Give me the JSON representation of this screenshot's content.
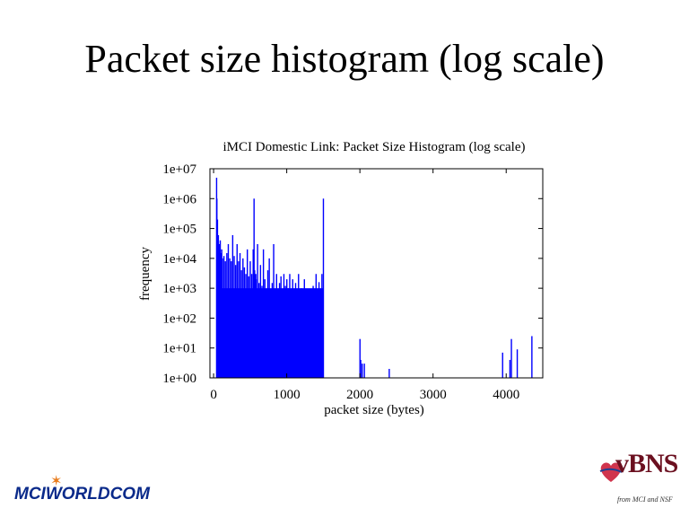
{
  "slide": {
    "title": "Packet size histogram (log scale)"
  },
  "chart_data": {
    "type": "bar",
    "title": "iMCI Domestic Link: Packet Size Histogram (log scale)",
    "xlabel": "packet size (bytes)",
    "ylabel": "frequency",
    "x_scale": "linear",
    "y_scale": "log",
    "xlim": [
      -50,
      4500
    ],
    "ylim": [
      1,
      10000000
    ],
    "x_ticks": [
      {
        "value": 0,
        "label": "0"
      },
      {
        "value": 1000,
        "label": "1000"
      },
      {
        "value": 2000,
        "label": "2000"
      },
      {
        "value": 3000,
        "label": "3000"
      },
      {
        "value": 4000,
        "label": "4000"
      }
    ],
    "y_ticks": [
      {
        "value": 1,
        "label": "1e+00"
      },
      {
        "value": 10,
        "label": "1e+01"
      },
      {
        "value": 100,
        "label": "1e+02"
      },
      {
        "value": 1000,
        "label": "1e+03"
      },
      {
        "value": 10000,
        "label": "1e+04"
      },
      {
        "value": 100000,
        "label": "1e+05"
      },
      {
        "value": 1000000,
        "label": "1e+06"
      },
      {
        "value": 10000000,
        "label": "1e+07"
      }
    ],
    "grid": false,
    "bar_color": "#0000ff",
    "bulk_range": {
      "start": 40,
      "end": 1500,
      "baseline_level": 1000
    },
    "series": [
      {
        "x": [
          40,
          44,
          52,
          60,
          64,
          76,
          90,
          100,
          110,
          120,
          140,
          160,
          180,
          200,
          220,
          240,
          260,
          280,
          300,
          320,
          340,
          360,
          380,
          400,
          420,
          440,
          460,
          480,
          500,
          520,
          540,
          552,
          560,
          576,
          580,
          600,
          620,
          640,
          660,
          680,
          700,
          720,
          740,
          760,
          780,
          800,
          820,
          840,
          860,
          880,
          900,
          920,
          940,
          960,
          980,
          1000,
          1020,
          1040,
          1060,
          1080,
          1100,
          1120,
          1140,
          1160,
          1180,
          1200,
          1220,
          1240,
          1260,
          1280,
          1300,
          1320,
          1340,
          1360,
          1380,
          1400,
          1420,
          1440,
          1460,
          1480,
          1500,
          2000,
          2010,
          2030,
          2060,
          2400,
          3950,
          4050,
          4070,
          4150,
          4350
        ],
        "y": [
          5000000,
          1000000,
          200000,
          50000,
          60000,
          30000,
          40000,
          15000,
          20000,
          10000,
          12000,
          8000,
          15000,
          30000,
          10000,
          8000,
          60000,
          12000,
          6000,
          30000,
          8000,
          15000,
          4000,
          10000,
          5000,
          3000,
          20000,
          2500,
          8000,
          3000,
          20000,
          1000000,
          4000,
          3000,
          2000,
          30000,
          1500,
          6000,
          1200,
          20000,
          2000,
          800,
          4000,
          10000,
          900,
          1500,
          30000,
          700,
          3000,
          500,
          1500,
          2500,
          600,
          3000,
          1200,
          2000,
          1000,
          3000,
          600,
          2000,
          400,
          1500,
          600,
          3000,
          700,
          1000,
          500,
          2000,
          900,
          600,
          400,
          800,
          700,
          1200,
          500,
          3000,
          900,
          1600,
          600,
          3000,
          1000000,
          20,
          4,
          3,
          3,
          2,
          7,
          4,
          20,
          9,
          25
        ]
      }
    ]
  },
  "logos": {
    "mci": "MCIWORLDCOM",
    "vbns": "vBNS",
    "vbns_tagline": "from MCI and NSF"
  }
}
